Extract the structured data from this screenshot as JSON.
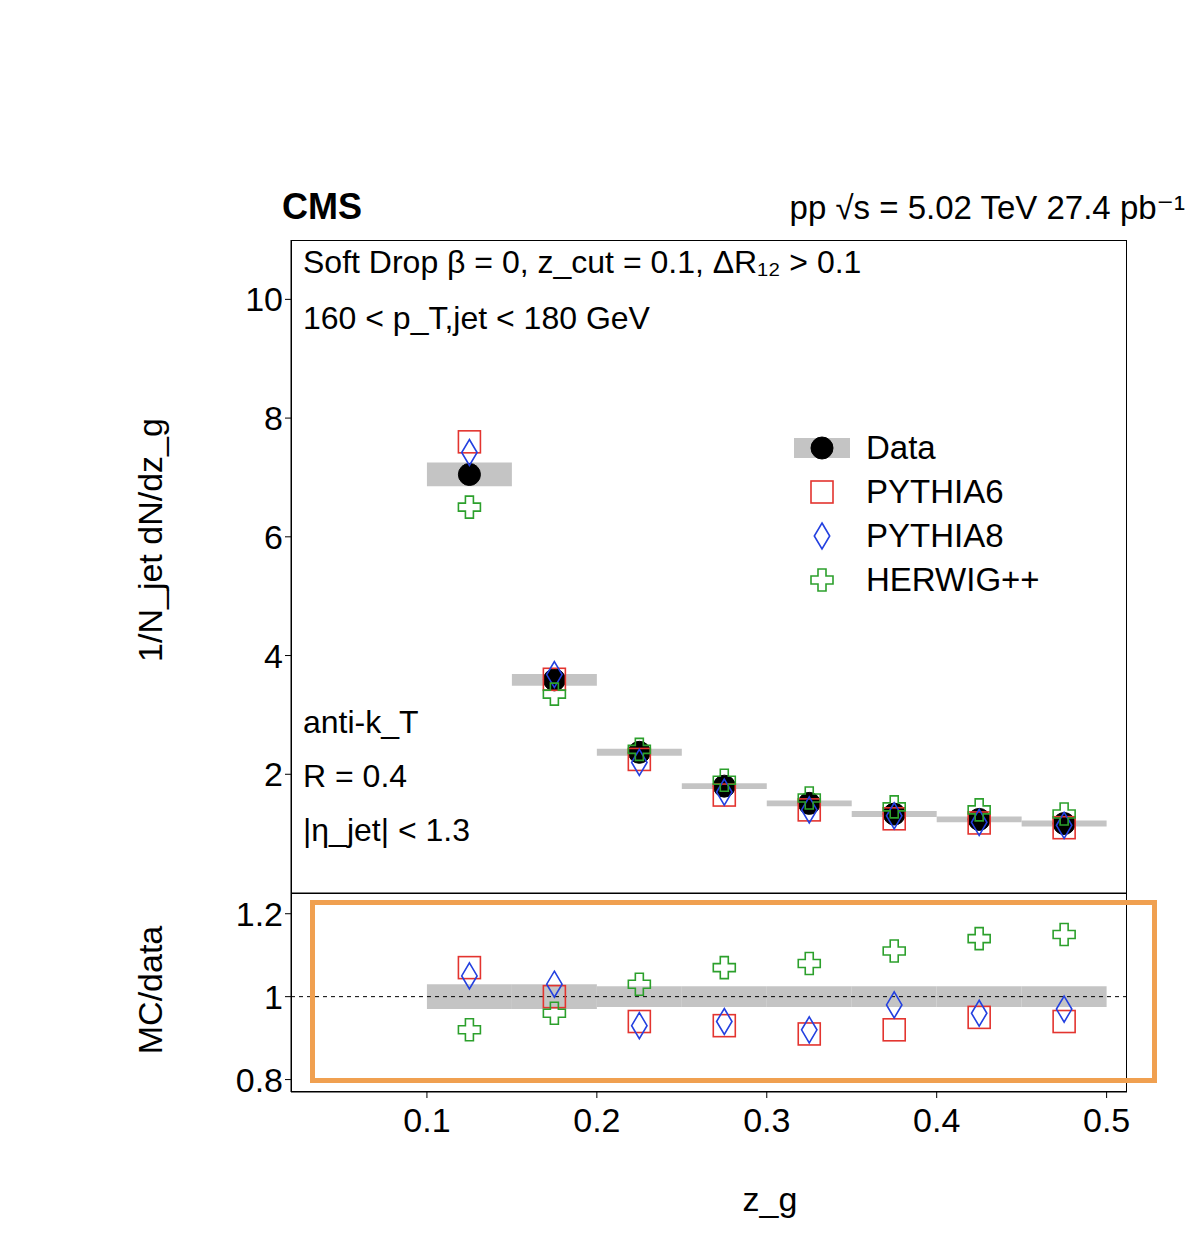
{
  "chart_data": [
    {
      "type": "scatter",
      "title": "CMS",
      "subtitle": "pp √s = 5.02 TeV  27.4 pb⁻¹",
      "annotations": [
        "Soft Drop β = 0, z_cut = 0.1, ΔR₁₂ > 0.1",
        "160 < p_T,jet < 180 GeV",
        "anti-k_T",
        "R = 0.4",
        "|η_jet| < 1.3"
      ],
      "y_label": "1/N_jet dN/dz_g",
      "bins": [
        0.1,
        0.15,
        0.2,
        0.25,
        0.3,
        0.35,
        0.4,
        0.45,
        0.5
      ],
      "x": [
        0.125,
        0.175,
        0.225,
        0.275,
        0.325,
        0.375,
        0.425,
        0.475
      ],
      "series": [
        {
          "name": "Data",
          "color": "#000000",
          "marker": "circle",
          "values": [
            7.05,
            3.59,
            2.37,
            1.8,
            1.51,
            1.33,
            1.24,
            1.17
          ],
          "uncertainty": [
            0.2,
            0.1,
            0.06,
            0.05,
            0.05,
            0.05,
            0.05,
            0.05
          ]
        },
        {
          "name": "PYTHIA6",
          "color": "#e3342f",
          "marker": "square",
          "values": [
            7.6,
            3.6,
            2.25,
            1.65,
            1.4,
            1.25,
            1.18,
            1.1
          ]
        },
        {
          "name": "PYTHIA8",
          "color": "#2340e0",
          "marker": "diamond",
          "values": [
            7.42,
            3.68,
            2.2,
            1.7,
            1.4,
            1.3,
            1.19,
            1.14
          ]
        },
        {
          "name": "HERWIG++",
          "color": "#2ca02c",
          "marker": "cross",
          "values": [
            6.5,
            3.35,
            2.42,
            1.9,
            1.6,
            1.45,
            1.4,
            1.33
          ]
        }
      ],
      "xlim": [
        0.02,
        0.512
      ],
      "xticks": [
        0.1,
        0.2,
        0.3,
        0.4,
        0.5
      ],
      "ylim": [
        0,
        11
      ],
      "yticks": [
        2,
        4,
        6,
        8,
        10
      ],
      "legend": "right",
      "tick_labels": "y"
    },
    {
      "type": "scatter",
      "x_label": "z_g",
      "y_label": "MC/data",
      "bins": [
        0.1,
        0.15,
        0.2,
        0.25,
        0.3,
        0.35,
        0.4,
        0.45,
        0.5
      ],
      "x": [
        0.125,
        0.175,
        0.225,
        0.275,
        0.325,
        0.375,
        0.425,
        0.475
      ],
      "reference_line": 1,
      "data_uncertainty": [
        0.03,
        0.03,
        0.025,
        0.025,
        0.025,
        0.025,
        0.025,
        0.025
      ],
      "series": [
        {
          "name": "PYTHIA6",
          "color": "#e3342f",
          "marker": "square",
          "values": [
            1.07,
            1.0,
            0.94,
            0.93,
            0.91,
            0.92,
            0.95,
            0.94
          ]
        },
        {
          "name": "PYTHIA8",
          "color": "#2340e0",
          "marker": "diamond",
          "values": [
            1.05,
            1.03,
            0.93,
            0.94,
            0.92,
            0.98,
            0.96,
            0.97
          ]
        },
        {
          "name": "HERWIG++",
          "color": "#2ca02c",
          "marker": "cross",
          "values": [
            0.92,
            0.96,
            1.03,
            1.07,
            1.08,
            1.11,
            1.14,
            1.15
          ]
        }
      ],
      "xlim": [
        0.02,
        0.512
      ],
      "xticks": [
        0.1,
        0.2,
        0.3,
        0.4,
        0.5
      ],
      "ylim": [
        0.77,
        1.25
      ],
      "yticks": [
        0.8,
        1,
        1.2
      ]
    }
  ]
}
